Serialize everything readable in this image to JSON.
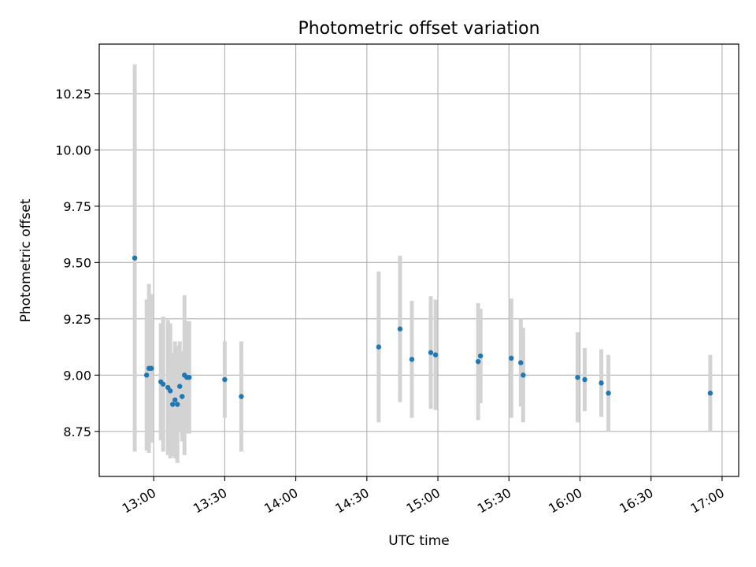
{
  "chart_data": {
    "type": "scatter",
    "title": "Photometric offset variation",
    "xlabel": "UTC time",
    "ylabel": "Photometric offset",
    "xlim": [
      "12:37",
      "17:07"
    ],
    "ylim": [
      8.55,
      10.47
    ],
    "x_ticks": [
      "13:00",
      "13:30",
      "14:00",
      "14:30",
      "15:00",
      "15:30",
      "16:00",
      "16:30",
      "17:00"
    ],
    "y_ticks": [
      "8.75",
      "9.00",
      "9.25",
      "9.50",
      "9.75",
      "10.00",
      "10.25"
    ],
    "grid": true,
    "marker_color": "#1f77b4",
    "errorbar_color": "#d3d3d3",
    "series": [
      {
        "x": [
          "12:52",
          "12:57",
          "12:58",
          "12:59",
          "13:03",
          "13:04",
          "13:06",
          "13:07",
          "13:08",
          "13:09",
          "13:10",
          "13:11",
          "13:12",
          "13:13",
          "13:14",
          "13:15",
          "13:30",
          "13:37",
          "14:35",
          "14:44",
          "14:49",
          "14:57",
          "14:59",
          "15:17",
          "15:18",
          "15:31",
          "15:35",
          "15:36",
          "15:59",
          "16:02",
          "16:09",
          "16:12",
          "16:55"
        ],
        "y": [
          9.52,
          9.0,
          9.03,
          9.03,
          8.97,
          8.96,
          8.945,
          8.93,
          8.87,
          8.89,
          8.87,
          8.95,
          8.905,
          9.0,
          8.99,
          8.99,
          8.98,
          8.905,
          9.125,
          9.205,
          9.07,
          9.1,
          9.09,
          9.06,
          9.085,
          9.075,
          9.055,
          9.0,
          8.99,
          8.98,
          8.965,
          8.92,
          8.92
        ],
        "err": [
          0.86,
          0.335,
          0.375,
          0.33,
          0.26,
          0.3,
          0.3,
          0.3,
          0.23,
          0.26,
          0.26,
          0.2,
          0.2,
          0.355,
          0.25,
          0.25,
          0.17,
          0.245,
          0.335,
          0.325,
          0.26,
          0.25,
          0.245,
          0.26,
          0.21,
          0.265,
          0.195,
          0.21,
          0.2,
          0.14,
          0.15,
          0.17,
          0.17
        ]
      }
    ]
  }
}
